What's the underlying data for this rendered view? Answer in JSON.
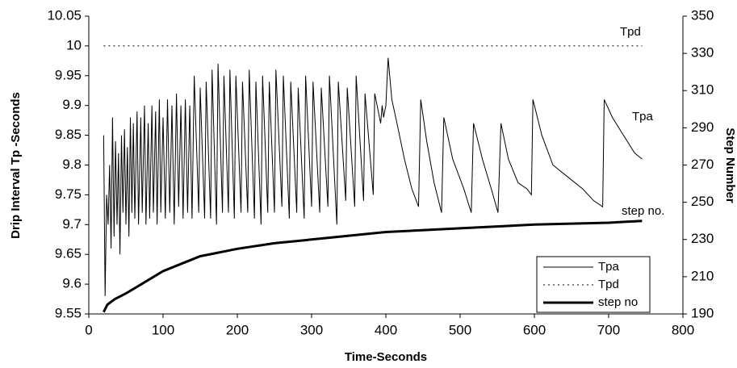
{
  "chart_data": {
    "type": "line",
    "xlabel": "Time-Seconds",
    "ylabel": "Drip Interval Tp -Seconds",
    "y2label": "Step Number",
    "xlim": [
      0,
      800
    ],
    "xticks": [
      0,
      100,
      200,
      300,
      400,
      500,
      600,
      700,
      800
    ],
    "ylim": [
      9.55,
      10.05
    ],
    "yticks": [
      9.55,
      9.6,
      9.65,
      9.7,
      9.75,
      9.8,
      9.85,
      9.9,
      9.95,
      10,
      10.05
    ],
    "y2lim": [
      190,
      350
    ],
    "y2ticks": [
      190,
      210,
      230,
      250,
      270,
      290,
      310,
      330,
      350
    ],
    "annotations": [
      "Tpd",
      "Tpa",
      "step no."
    ],
    "series": [
      {
        "name": "Tpa",
        "color": "#000000",
        "dash": "solid",
        "width": 1,
        "x": [
          20,
          22,
          24,
          26,
          28,
          30,
          32,
          34,
          36,
          38,
          40,
          42,
          44,
          46,
          48,
          50,
          52,
          54,
          56,
          58,
          60,
          62,
          65,
          67,
          70,
          72,
          75,
          77,
          80,
          82,
          85,
          87,
          90,
          92,
          95,
          97,
          100,
          103,
          106,
          109,
          112,
          115,
          118,
          121,
          124,
          127,
          130,
          133,
          136,
          139,
          142,
          148,
          150,
          156,
          158,
          164,
          166,
          172,
          174,
          180,
          182,
          188,
          190,
          196,
          198,
          205,
          207,
          214,
          216,
          223,
          225,
          232,
          234,
          241,
          243,
          250,
          252,
          260,
          262,
          270,
          272,
          280,
          282,
          290,
          292,
          300,
          302,
          311,
          313,
          322,
          324,
          334,
          336,
          346,
          348,
          358,
          360,
          370,
          372,
          383,
          385,
          393,
          395,
          397,
          400,
          403,
          408,
          415,
          425,
          435,
          444,
          447,
          455,
          465,
          475,
          478,
          490,
          505,
          515,
          518,
          530,
          542,
          551,
          555,
          565,
          578,
          590,
          596,
          598,
          610,
          625,
          645,
          665,
          680,
          692,
          694,
          705,
          720,
          735,
          745
        ],
        "values": [
          9.85,
          9.58,
          9.75,
          9.7,
          9.8,
          9.66,
          9.88,
          9.68,
          9.84,
          9.7,
          9.82,
          9.65,
          9.85,
          9.72,
          9.86,
          9.7,
          9.83,
          9.68,
          9.88,
          9.72,
          9.87,
          9.71,
          9.89,
          9.7,
          9.88,
          9.72,
          9.9,
          9.7,
          9.87,
          9.71,
          9.9,
          9.72,
          9.89,
          9.7,
          9.91,
          9.72,
          9.88,
          9.71,
          9.91,
          9.72,
          9.9,
          9.7,
          9.92,
          9.73,
          9.9,
          9.71,
          9.91,
          9.72,
          9.9,
          9.71,
          9.95,
          9.72,
          9.93,
          9.71,
          9.94,
          9.71,
          9.96,
          9.7,
          9.97,
          9.72,
          9.95,
          9.72,
          9.96,
          9.71,
          9.95,
          9.72,
          9.94,
          9.72,
          9.96,
          9.71,
          9.94,
          9.7,
          9.95,
          9.72,
          9.94,
          9.72,
          9.96,
          9.73,
          9.95,
          9.71,
          9.94,
          9.72,
          9.93,
          9.71,
          9.95,
          9.73,
          9.94,
          9.72,
          9.93,
          9.73,
          9.95,
          9.7,
          9.94,
          9.74,
          9.93,
          9.73,
          9.95,
          9.74,
          9.92,
          9.75,
          9.92,
          9.87,
          9.9,
          9.88,
          9.9,
          9.98,
          9.91,
          9.87,
          9.81,
          9.76,
          9.73,
          9.91,
          9.84,
          9.77,
          9.72,
          9.88,
          9.81,
          9.76,
          9.72,
          9.87,
          9.81,
          9.76,
          9.72,
          9.87,
          9.81,
          9.77,
          9.76,
          9.75,
          9.91,
          9.85,
          9.8,
          9.78,
          9.76,
          9.74,
          9.73,
          9.91,
          9.88,
          9.85,
          9.82,
          9.81
        ]
      },
      {
        "name": "Tpd",
        "color": "#000000",
        "dash": "dotted",
        "width": 1,
        "x": [
          20,
          745
        ],
        "values": [
          10,
          10
        ]
      },
      {
        "name": "step no",
        "color": "#000000",
        "dash": "solid",
        "width": 3,
        "axis": "y2",
        "x": [
          20,
          25,
          35,
          50,
          75,
          100,
          125,
          150,
          200,
          250,
          300,
          350,
          400,
          500,
          600,
          700,
          745
        ],
        "values": [
          191,
          195,
          198,
          201,
          207,
          213,
          217,
          221,
          225,
          228,
          230,
          232,
          234,
          236,
          238,
          239,
          240
        ]
      }
    ]
  }
}
